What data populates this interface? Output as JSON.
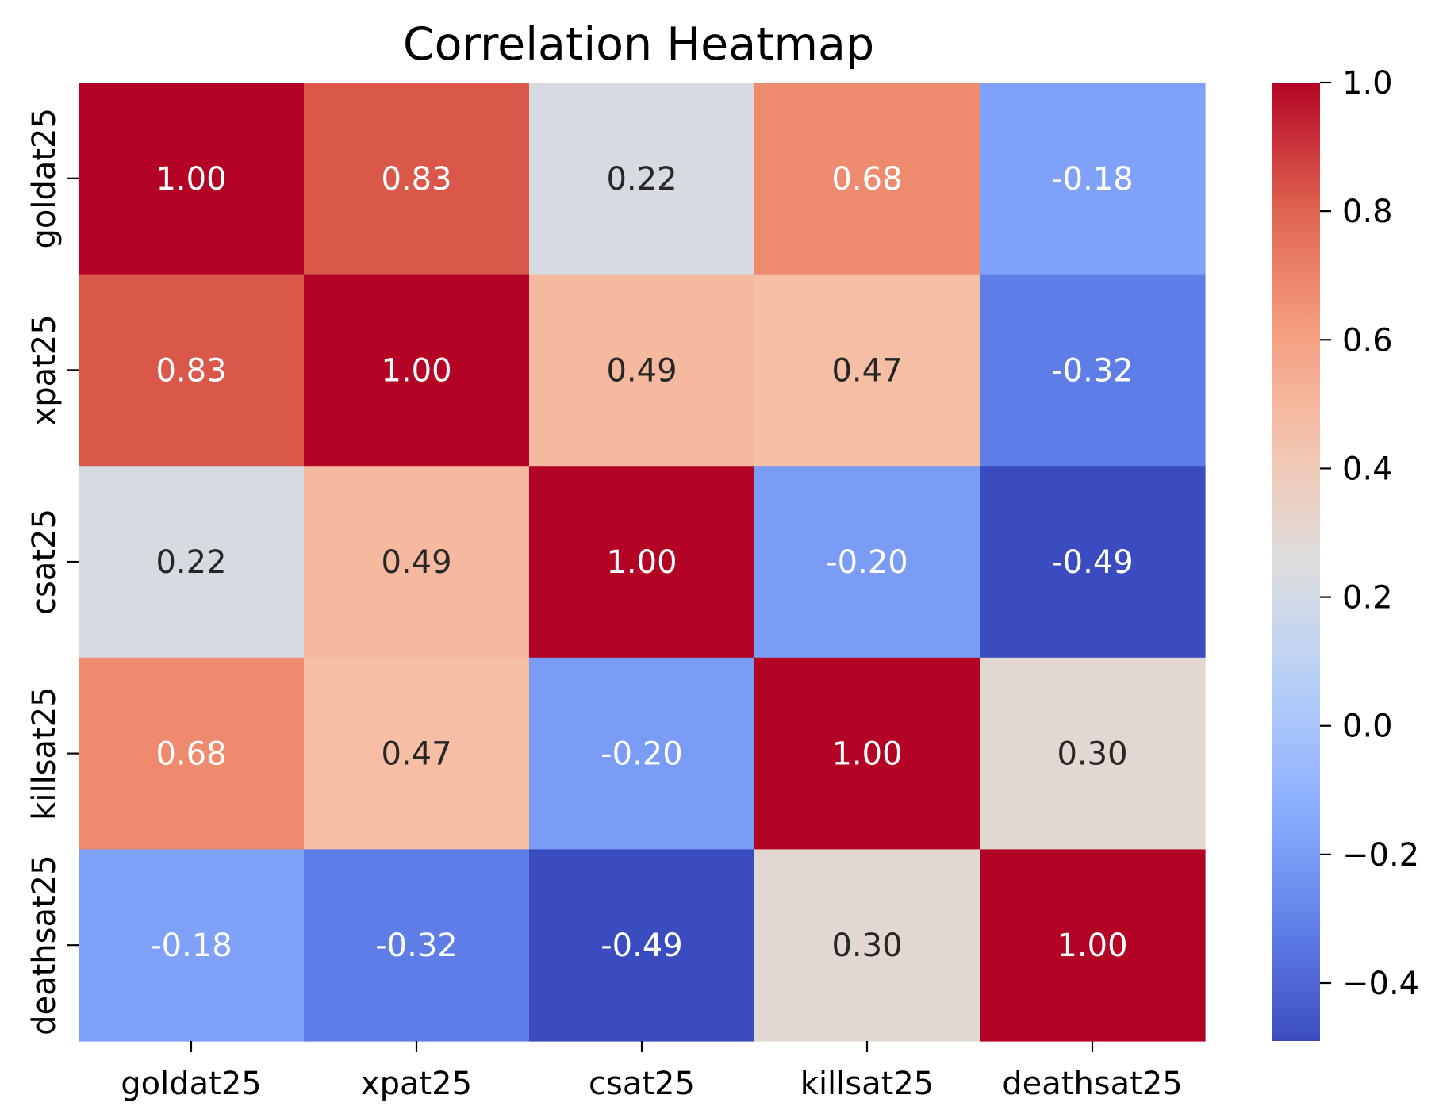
{
  "chart_data": {
    "type": "heatmap",
    "title": "Correlation Heatmap",
    "xlabel": "",
    "ylabel": "",
    "rows": [
      "goldat25",
      "xpat25",
      "csat25",
      "killsat25",
      "deathsat25"
    ],
    "columns": [
      "goldat25",
      "xpat25",
      "csat25",
      "killsat25",
      "deathsat25"
    ],
    "values": [
      [
        1.0,
        0.83,
        0.22,
        0.68,
        -0.18
      ],
      [
        0.83,
        1.0,
        0.49,
        0.47,
        -0.32
      ],
      [
        0.22,
        0.49,
        1.0,
        -0.2,
        -0.49
      ],
      [
        0.68,
        0.47,
        -0.2,
        1.0,
        0.3
      ],
      [
        -0.18,
        -0.32,
        -0.49,
        0.3,
        1.0
      ]
    ],
    "cell_labels": [
      [
        "1.00",
        "0.83",
        "0.22",
        "0.68",
        "-0.18"
      ],
      [
        "0.83",
        "1.00",
        "0.49",
        "0.47",
        "-0.32"
      ],
      [
        "0.22",
        "0.49",
        "1.00",
        "-0.20",
        "-0.49"
      ],
      [
        "0.68",
        "0.47",
        "-0.20",
        "1.00",
        "0.30"
      ],
      [
        "-0.18",
        "-0.32",
        "-0.49",
        "0.30",
        "1.00"
      ]
    ],
    "colormap": "coolwarm",
    "colorbar": {
      "vmin": -0.49,
      "vmax": 1.0,
      "ticks": [
        1.0,
        0.8,
        0.6,
        0.4,
        0.2,
        0.0,
        -0.2,
        -0.4
      ],
      "tick_labels": [
        "1.0",
        "0.8",
        "0.6",
        "0.4",
        "0.2",
        "0.0",
        "−0.2",
        "−0.4"
      ]
    },
    "annotation_text_colors": {
      "light": "#ffffff",
      "dark": "#262626"
    }
  }
}
